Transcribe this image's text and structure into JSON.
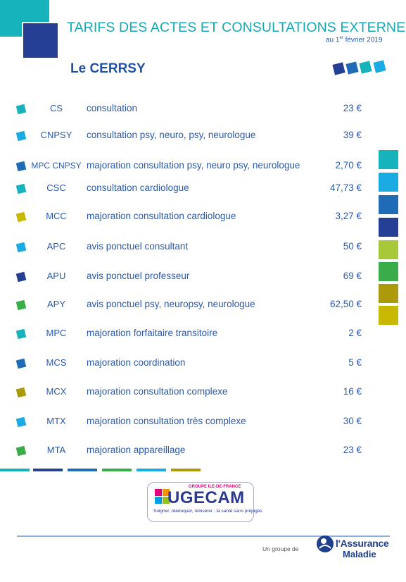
{
  "header": {
    "title": "TARIFS DES ACTES ET CONSULTATIONS EXTERNES",
    "date_prefix": "au 1",
    "date_sup": "er",
    "date_suffix": " février 2019",
    "section": "Le CERRSY"
  },
  "colors": {
    "teal": "#16b3bd",
    "sky": "#1aabe2",
    "blue": "#1f6bb5",
    "navy": "#253f94",
    "lime": "#a8c83a",
    "green": "#3aac4a",
    "olive": "#ab9a0a",
    "yellow": "#c8b800"
  },
  "tarifs": [
    {
      "code": "CS",
      "label": "consultation",
      "price": "23 €",
      "color": "#16b3bd"
    },
    {
      "code": "CNPSY",
      "label": "consultation psy, neuro, psy, neurologue",
      "price": "39 €",
      "color": "#1aabe2"
    },
    {
      "code": "MPC CNPSY",
      "label": "majoration consultation psy, neuro psy, neurologue",
      "price": "2,70 €",
      "color": "#1f6bb5"
    },
    {
      "code": "CSC",
      "label": "consultation cardiologue",
      "price": "47,73 €",
      "color": "#16b3bd"
    },
    {
      "code": "MCC",
      "label": "majoration consultation cardiologue",
      "price": "3,27 €",
      "color": "#c8b800"
    },
    {
      "code": "APC",
      "label": "avis ponctuel consultant",
      "price": "50 €",
      "color": "#1aabe2"
    },
    {
      "code": "APU",
      "label": "avis ponctuel professeur",
      "price": "69 €",
      "color": "#253f94"
    },
    {
      "code": "APY",
      "label": "avis ponctuel psy, neuropsy, neurologue",
      "price": "62,50 €",
      "color": "#3aac4a"
    },
    {
      "code": "MPC",
      "label": "majoration forfaitaire transitoire",
      "price": "2 €",
      "color": "#16b3bd"
    },
    {
      "code": "MCS",
      "label": "majoration coordination",
      "price": "5 €",
      "color": "#1f6bb5"
    },
    {
      "code": "MCX",
      "label": "majoration consultation complexe",
      "price": "16 €",
      "color": "#ab9a0a"
    },
    {
      "code": "MTX",
      "label": "majoration consultation très complexe",
      "price": "30 €",
      "color": "#1aabe2"
    },
    {
      "code": "MTA",
      "label": "majoration appareillage",
      "price": "23 €",
      "color": "#3aac4a"
    }
  ],
  "logo": {
    "groupe": "GROUPE",
    "region": "ILE-DE-FRANCE",
    "name": "UGECAM",
    "tagline": "Soigner, rééduquer, réinsérer : la santé sans préjugés"
  },
  "footer": {
    "group_text": "Un groupe de",
    "brand_line1": "l'Assurance",
    "brand_line2": "Maladie"
  }
}
